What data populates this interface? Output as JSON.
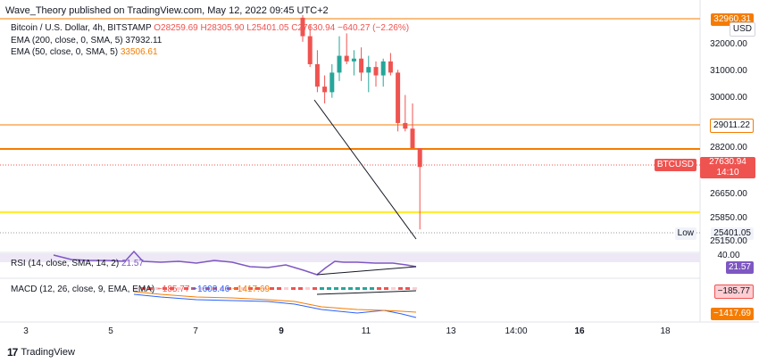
{
  "header": {
    "text": "Wave_Theory published on TradingView.com, May 12, 2022 09:45 UTC+2"
  },
  "legend": {
    "symbol": "Bitcoin / U.S. Dollar, 4h, BITSTAMP",
    "ohlc": "O28259.69 H28305.90 L25401.05 C27630.94 −640.27 (−2.26%)",
    "ema200_label": "EMA (200, close, 0, SMA, 5)",
    "ema200_value": "37932.11",
    "ema50_label": "EMA (50, close, 0, SMA, 5)",
    "ema50_value": "33506.61"
  },
  "price_axis": {
    "currency": "USD",
    "ticks": [
      "32000.00",
      "31000.00",
      "30000.00",
      "28200.00",
      "26650.00",
      "25850.00",
      "25150.00"
    ],
    "top_level": "32960.31",
    "level_29011": "29011.22",
    "current_price": "27630.94",
    "countdown": "14:10",
    "symbol_tag": "BTCUSD",
    "low_tag": "Low",
    "low_value": "25401.05"
  },
  "rsi": {
    "label": "RSI (14, close, SMA, 14, 2)",
    "value": "21.57",
    "axis_40": "40.00",
    "axis_value": "21.57"
  },
  "macd": {
    "label": "MACD (12, 26, close, 9, EMA, EMA)",
    "v1": "−185.77",
    "v2": "−1603.46",
    "v3": "−1417.69",
    "axis_hist": "−185.77",
    "axis_signal": "−1417.69"
  },
  "time_axis": [
    "3",
    "5",
    "7",
    "9",
    "11",
    "13",
    "14:00",
    "16",
    "18"
  ],
  "footer": {
    "logo": "17",
    "brand": "TradingView"
  },
  "colors": {
    "up": "#26a69a",
    "down": "#ef5350",
    "orange": "#f57c00",
    "yellow": "#ffeb3b",
    "rsi": "#7e57c2",
    "macd_line": "#2962ff"
  },
  "candles": [
    {
      "o": 32960,
      "h": 33050,
      "l": 32100,
      "c": 32300
    },
    {
      "o": 32300,
      "h": 32700,
      "l": 31200,
      "c": 31300
    },
    {
      "o": 31300,
      "h": 31800,
      "l": 30300,
      "c": 30500
    },
    {
      "o": 30500,
      "h": 30900,
      "l": 29900,
      "c": 30300
    },
    {
      "o": 30300,
      "h": 31300,
      "l": 30100,
      "c": 31000
    },
    {
      "o": 31000,
      "h": 32300,
      "l": 30700,
      "c": 31600
    },
    {
      "o": 31600,
      "h": 32400,
      "l": 31300,
      "c": 31400
    },
    {
      "o": 31400,
      "h": 31800,
      "l": 30900,
      "c": 31500
    },
    {
      "o": 31500,
      "h": 31900,
      "l": 30700,
      "c": 31000
    },
    {
      "o": 31000,
      "h": 31600,
      "l": 30300,
      "c": 31200
    },
    {
      "o": 31200,
      "h": 31400,
      "l": 30500,
      "c": 30900
    },
    {
      "o": 30900,
      "h": 31500,
      "l": 30500,
      "c": 31400
    },
    {
      "o": 31400,
      "h": 31700,
      "l": 30900,
      "c": 31000
    },
    {
      "o": 31000,
      "h": 31100,
      "l": 28900,
      "c": 29200
    },
    {
      "o": 29200,
      "h": 30200,
      "l": 28900,
      "c": 29000
    },
    {
      "o": 29000,
      "h": 29900,
      "l": 28300,
      "c": 28300
    },
    {
      "o": 28300,
      "h": 28306,
      "l": 25401,
      "c": 27631
    }
  ]
}
